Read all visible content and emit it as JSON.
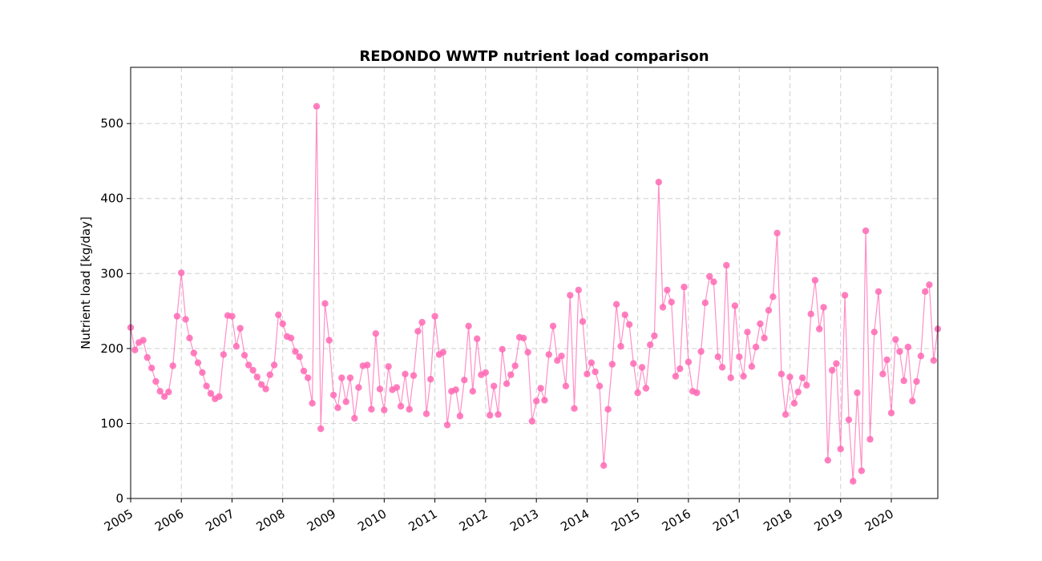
{
  "chart_data": {
    "type": "line",
    "title": "REDONDO WWTP nutrient load comparison",
    "xlabel": "",
    "ylabel": "Nutrient load [kg/day]",
    "xlim": [
      "2005-01-01",
      "2020-12-01"
    ],
    "ylim": [
      0,
      575
    ],
    "yticks": [
      0,
      100,
      200,
      300,
      400,
      500
    ],
    "xticks": [
      "2005",
      "2006",
      "2007",
      "2008",
      "2009",
      "2010",
      "2011",
      "2012",
      "2013",
      "2014",
      "2015",
      "2016",
      "2017",
      "2018",
      "2019",
      "2020"
    ],
    "grid": true,
    "series": [
      {
        "color": "#ff69b4",
        "marker": "circle",
        "points": [
          [
            "2005-01",
            228
          ],
          [
            "2005-02",
            198
          ],
          [
            "2005-03",
            208
          ],
          [
            "2005-04",
            211
          ],
          [
            "2005-05",
            188
          ],
          [
            "2005-06",
            174
          ],
          [
            "2005-07",
            156
          ],
          [
            "2005-08",
            143
          ],
          [
            "2005-09",
            136
          ],
          [
            "2005-10",
            142
          ],
          [
            "2005-11",
            177
          ],
          [
            "2005-12",
            243
          ],
          [
            "2006-01",
            301
          ],
          [
            "2006-02",
            239
          ],
          [
            "2006-03",
            214
          ],
          [
            "2006-04",
            194
          ],
          [
            "2006-05",
            181
          ],
          [
            "2006-06",
            168
          ],
          [
            "2006-07",
            150
          ],
          [
            "2006-08",
            140
          ],
          [
            "2006-09",
            133
          ],
          [
            "2006-10",
            136
          ],
          [
            "2006-11",
            192
          ],
          [
            "2006-12",
            244
          ],
          [
            "2007-01",
            243
          ],
          [
            "2007-02",
            203
          ],
          [
            "2007-03",
            227
          ],
          [
            "2007-04",
            191
          ],
          [
            "2007-05",
            178
          ],
          [
            "2007-06",
            171
          ],
          [
            "2007-07",
            162
          ],
          [
            "2007-08",
            152
          ],
          [
            "2007-09",
            146
          ],
          [
            "2007-10",
            165
          ],
          [
            "2007-11",
            178
          ],
          [
            "2007-12",
            245
          ],
          [
            "2008-01",
            233
          ],
          [
            "2008-02",
            216
          ],
          [
            "2008-03",
            214
          ],
          [
            "2008-04",
            196
          ],
          [
            "2008-05",
            189
          ],
          [
            "2008-06",
            170
          ],
          [
            "2008-07",
            161
          ],
          [
            "2008-08",
            127
          ],
          [
            "2008-09",
            523
          ],
          [
            "2008-10",
            93
          ],
          [
            "2008-11",
            260
          ],
          [
            "2008-12",
            211
          ],
          [
            "2009-01",
            138
          ],
          [
            "2009-02",
            121
          ],
          [
            "2009-03",
            161
          ],
          [
            "2009-04",
            129
          ],
          [
            "2009-05",
            161
          ],
          [
            "2009-06",
            107
          ],
          [
            "2009-07",
            148
          ],
          [
            "2009-08",
            177
          ],
          [
            "2009-09",
            178
          ],
          [
            "2009-10",
            119
          ],
          [
            "2009-11",
            220
          ],
          [
            "2009-12",
            146
          ],
          [
            "2010-01",
            118
          ],
          [
            "2010-02",
            176
          ],
          [
            "2010-03",
            145
          ],
          [
            "2010-04",
            148
          ],
          [
            "2010-05",
            123
          ],
          [
            "2010-06",
            166
          ],
          [
            "2010-07",
            119
          ],
          [
            "2010-08",
            164
          ],
          [
            "2010-09",
            223
          ],
          [
            "2010-10",
            235
          ],
          [
            "2010-11",
            113
          ],
          [
            "2010-12",
            159
          ],
          [
            "2011-01",
            243
          ],
          [
            "2011-02",
            192
          ],
          [
            "2011-03",
            195
          ],
          [
            "2011-04",
            98
          ],
          [
            "2011-05",
            143
          ],
          [
            "2011-06",
            145
          ],
          [
            "2011-07",
            110
          ],
          [
            "2011-08",
            158
          ],
          [
            "2011-09",
            230
          ],
          [
            "2011-10",
            143
          ],
          [
            "2011-11",
            213
          ],
          [
            "2011-12",
            165
          ],
          [
            "2012-01",
            168
          ],
          [
            "2012-02",
            111
          ],
          [
            "2012-03",
            150
          ],
          [
            "2012-04",
            112
          ],
          [
            "2012-05",
            199
          ],
          [
            "2012-06",
            153
          ],
          [
            "2012-07",
            165
          ],
          [
            "2012-08",
            177
          ],
          [
            "2012-09",
            215
          ],
          [
            "2012-10",
            214
          ],
          [
            "2012-11",
            195
          ],
          [
            "2012-12",
            103
          ],
          [
            "2013-01",
            130
          ],
          [
            "2013-02",
            147
          ],
          [
            "2013-03",
            131
          ],
          [
            "2013-04",
            192
          ],
          [
            "2013-05",
            230
          ],
          [
            "2013-06",
            184
          ],
          [
            "2013-07",
            190
          ],
          [
            "2013-08",
            150
          ],
          [
            "2013-09",
            271
          ],
          [
            "2013-10",
            120
          ],
          [
            "2013-11",
            278
          ],
          [
            "2013-12",
            236
          ],
          [
            "2014-01",
            166
          ],
          [
            "2014-02",
            181
          ],
          [
            "2014-03",
            169
          ],
          [
            "2014-04",
            150
          ],
          [
            "2014-05",
            44
          ],
          [
            "2014-06",
            119
          ],
          [
            "2014-07",
            179
          ],
          [
            "2014-08",
            259
          ],
          [
            "2014-09",
            203
          ],
          [
            "2014-10",
            245
          ],
          [
            "2014-11",
            232
          ],
          [
            "2014-12",
            180
          ],
          [
            "2015-01",
            141
          ],
          [
            "2015-02",
            175
          ],
          [
            "2015-03",
            147
          ],
          [
            "2015-04",
            205
          ],
          [
            "2015-05",
            217
          ],
          [
            "2015-06",
            422
          ],
          [
            "2015-07",
            255
          ],
          [
            "2015-08",
            278
          ],
          [
            "2015-09",
            262
          ],
          [
            "2015-10",
            163
          ],
          [
            "2015-11",
            173
          ],
          [
            "2015-12",
            282
          ],
          [
            "2016-01",
            182
          ],
          [
            "2016-02",
            143
          ],
          [
            "2016-03",
            141
          ],
          [
            "2016-04",
            196
          ],
          [
            "2016-05",
            261
          ],
          [
            "2016-06",
            296
          ],
          [
            "2016-07",
            289
          ],
          [
            "2016-08",
            189
          ],
          [
            "2016-09",
            175
          ],
          [
            "2016-10",
            311
          ],
          [
            "2016-11",
            161
          ],
          [
            "2016-12",
            257
          ],
          [
            "2017-01",
            189
          ],
          [
            "2017-02",
            163
          ],
          [
            "2017-03",
            222
          ],
          [
            "2017-04",
            176
          ],
          [
            "2017-05",
            202
          ],
          [
            "2017-06",
            233
          ],
          [
            "2017-07",
            214
          ],
          [
            "2017-08",
            251
          ],
          [
            "2017-09",
            269
          ],
          [
            "2017-10",
            354
          ],
          [
            "2017-11",
            166
          ],
          [
            "2017-12",
            112
          ],
          [
            "2018-01",
            162
          ],
          [
            "2018-02",
            127
          ],
          [
            "2018-03",
            142
          ],
          [
            "2018-04",
            161
          ],
          [
            "2018-05",
            151
          ],
          [
            "2018-06",
            246
          ],
          [
            "2018-07",
            291
          ],
          [
            "2018-08",
            226
          ],
          [
            "2018-09",
            255
          ],
          [
            "2018-10",
            51
          ],
          [
            "2018-11",
            171
          ],
          [
            "2018-12",
            180
          ],
          [
            "2019-01",
            66
          ],
          [
            "2019-02",
            271
          ],
          [
            "2019-03",
            105
          ],
          [
            "2019-04",
            23
          ],
          [
            "2019-05",
            141
          ],
          [
            "2019-06",
            37
          ],
          [
            "2019-07",
            357
          ],
          [
            "2019-08",
            79
          ],
          [
            "2019-09",
            222
          ],
          [
            "2019-10",
            276
          ],
          [
            "2019-11",
            166
          ],
          [
            "2019-12",
            185
          ],
          [
            "2020-01",
            114
          ],
          [
            "2020-02",
            212
          ],
          [
            "2020-03",
            196
          ],
          [
            "2020-04",
            157
          ],
          [
            "2020-05",
            202
          ],
          [
            "2020-06",
            130
          ],
          [
            "2020-07",
            156
          ],
          [
            "2020-08",
            190
          ],
          [
            "2020-09",
            276
          ],
          [
            "2020-10",
            285
          ],
          [
            "2020-11",
            184
          ],
          [
            "2020-12",
            226
          ]
        ]
      }
    ]
  }
}
